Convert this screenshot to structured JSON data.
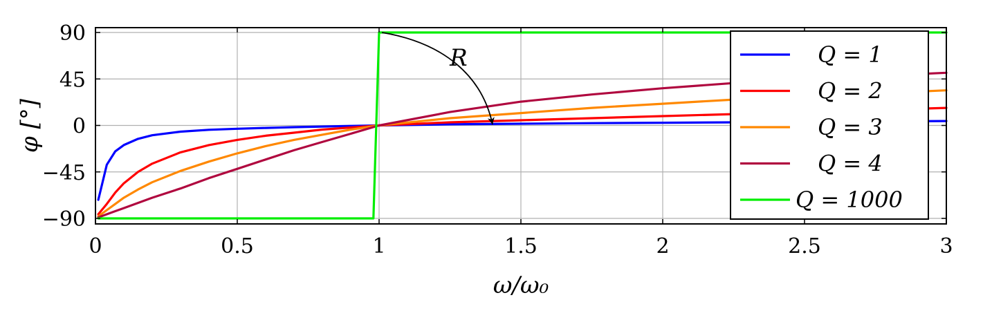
{
  "chart_data": {
    "type": "line",
    "title": "",
    "xlabel": "ω/ω₀",
    "ylabel": "φ [°]",
    "xlim": [
      0,
      3
    ],
    "ylim": [
      -95,
      95
    ],
    "xticks": [
      0,
      0.5,
      1,
      1.5,
      2,
      2.5,
      3
    ],
    "xtick_labels": [
      "0",
      "0.5",
      "1",
      "1.5",
      "2",
      "2.5",
      "3"
    ],
    "yticks": [
      90,
      45,
      0,
      -45,
      -90
    ],
    "ytick_labels": [
      "90",
      "45",
      "0",
      "−45",
      "−90"
    ],
    "grid": true,
    "legend_position": "right",
    "series": [
      {
        "name": "Q = 1",
        "color": "#0000ff",
        "x": [
          0.01,
          0.04,
          0.07,
          0.1,
          0.15,
          0.2,
          0.3,
          0.4,
          0.5,
          0.6,
          0.7,
          0.8,
          0.9,
          1.0,
          1.25,
          1.5,
          1.75,
          2.0,
          2.25,
          2.5,
          2.75,
          3.0
        ],
        "y": [
          -72,
          -38,
          -25,
          -19,
          -13,
          -9.5,
          -6.0,
          -4.2,
          -3.2,
          -2.4,
          -1.7,
          -1.1,
          -0.5,
          0,
          1.1,
          1.7,
          2.2,
          2.6,
          3.0,
          3.4,
          3.8,
          4.3
        ]
      },
      {
        "name": "Q = 2",
        "color": "#ff0000",
        "x": [
          0.01,
          0.04,
          0.07,
          0.1,
          0.15,
          0.2,
          0.3,
          0.4,
          0.5,
          0.6,
          0.7,
          0.8,
          0.9,
          1.0,
          1.25,
          1.5,
          1.75,
          2.0,
          2.25,
          2.5,
          2.75,
          3.0
        ],
        "y": [
          -86,
          -76,
          -65,
          -56,
          -45,
          -37,
          -26,
          -19,
          -14,
          -10,
          -7,
          -4,
          -2,
          0,
          3,
          5,
          7,
          9,
          11,
          13,
          15,
          17
        ]
      },
      {
        "name": "Q = 3",
        "color": "#ff8800",
        "x": [
          0.01,
          0.04,
          0.07,
          0.1,
          0.15,
          0.2,
          0.3,
          0.4,
          0.5,
          0.6,
          0.7,
          0.8,
          0.9,
          1.0,
          1.25,
          1.5,
          1.75,
          2.0,
          2.25,
          2.5,
          2.75,
          3.0
        ],
        "y": [
          -88,
          -82,
          -76,
          -70,
          -62,
          -55,
          -44,
          -35,
          -27,
          -20,
          -14,
          -9,
          -4,
          0,
          7,
          12,
          17,
          21,
          25,
          28,
          31,
          34
        ]
      },
      {
        "name": "Q = 4",
        "color": "#b0083f",
        "x": [
          0.01,
          0.04,
          0.07,
          0.1,
          0.15,
          0.2,
          0.3,
          0.4,
          0.5,
          0.6,
          0.7,
          0.8,
          0.9,
          1.0,
          1.25,
          1.5,
          1.75,
          2.0,
          2.25,
          2.5,
          2.75,
          3.0
        ],
        "y": [
          -89,
          -86,
          -83,
          -80,
          -75,
          -70,
          -61,
          -51,
          -42,
          -33,
          -24,
          -16,
          -8,
          0,
          13,
          23,
          30,
          36,
          41,
          45,
          48,
          51
        ]
      },
      {
        "name": "Q = 1000",
        "color": "#00ee00",
        "x": [
          0.01,
          0.98,
          1.0,
          3.0
        ],
        "y": [
          -90,
          -90,
          90,
          90
        ]
      }
    ],
    "annotation": {
      "text": "R",
      "arrow_from": [
        1.01,
        90
      ],
      "arrow_to": [
        1.4,
        1
      ]
    }
  }
}
